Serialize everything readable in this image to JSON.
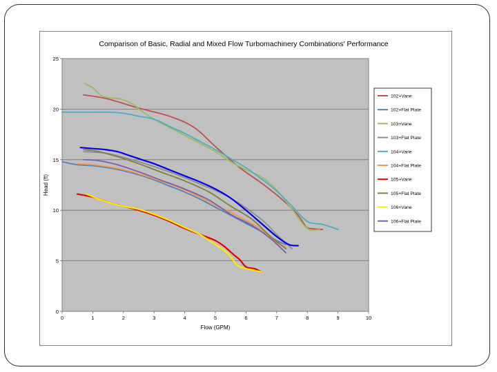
{
  "chart_data": {
    "type": "line",
    "title": "Comparison of Basic, Radial and Mixed Flow Turbomachinery Combinations' Performance",
    "xlabel": "Flow (GPM)",
    "ylabel": "Head (ft)",
    "xlim": [
      0,
      10
    ],
    "ylim": [
      0,
      25
    ],
    "x_ticks": [
      "0",
      "1",
      "2",
      "3",
      "4",
      "5",
      "6",
      "7",
      "8",
      "9",
      "10"
    ],
    "y_ticks": [
      "0",
      "5",
      "10",
      "15",
      "20",
      "25"
    ],
    "grid": "horizontal",
    "legend_position": "right",
    "series": [
      {
        "name": "102+Vane",
        "color": "#c0504d",
        "x": [
          0.7,
          1.5,
          2.5,
          3.5,
          4.3,
          5,
          5.8,
          6.5,
          7.2,
          7.7,
          7.95,
          8.1,
          8.5
        ],
        "y": [
          21.4,
          21,
          20.1,
          19.3,
          18.2,
          16.3,
          14.2,
          12.7,
          11,
          9.5,
          8.4,
          8.2,
          8.1
        ]
      },
      {
        "name": "102+Flat Plate",
        "color": "#4f81bd",
        "x": [
          0,
          0.5,
          1,
          1.5,
          2,
          2.5,
          3,
          3.5,
          4,
          4.5,
          5,
          5.5,
          6,
          6.5,
          7,
          7.3
        ],
        "y": [
          14.8,
          14.5,
          14.4,
          14.2,
          13.9,
          13.5,
          13,
          12.4,
          11.8,
          11.1,
          10.3,
          9.5,
          8.7,
          7.9,
          7,
          6.6
        ]
      },
      {
        "name": "103+Vane",
        "color": "#9bbb59",
        "x": [
          0.75,
          1,
          1.3,
          1.6,
          1.9,
          2.3,
          2.6,
          3,
          3.5,
          4,
          4.5,
          5,
          5.5,
          6,
          6.5,
          7,
          7.5,
          8,
          8.4
        ],
        "y": [
          22.5,
          22.1,
          21.3,
          21.1,
          21,
          20.5,
          19.8,
          19,
          18.2,
          17.4,
          16.6,
          15.8,
          14.8,
          14,
          13.3,
          12,
          10.1,
          8.2,
          8.1
        ]
      },
      {
        "name": "103+Flat Plate",
        "color": "#8c8c8c",
        "x": [
          0.7,
          1.5,
          2.5,
          3.5,
          4.5,
          5.5,
          6.5,
          7,
          7.5
        ],
        "y": [
          15.8,
          15.6,
          14.8,
          13.8,
          12.6,
          11.2,
          9.1,
          7.6,
          6.2
        ]
      },
      {
        "name": "104+Vane",
        "color": "#4bacc6",
        "x": [
          0,
          0.5,
          1,
          1.5,
          2,
          2.5,
          3,
          3.5,
          4,
          4.5,
          5,
          5.5,
          6,
          6.5,
          7,
          7.5,
          8,
          8.5,
          9
        ],
        "y": [
          19.7,
          19.7,
          19.7,
          19.7,
          19.6,
          19.3,
          19,
          18.3,
          17.6,
          16.8,
          16,
          15.1,
          14.2,
          13.1,
          11.9,
          10.4,
          8.9,
          8.6,
          8.1
        ]
      },
      {
        "name": "104+Flat Plate",
        "color": "#f79646",
        "x": [
          0.5,
          1,
          1.5,
          2,
          2.5,
          3,
          3.5,
          4,
          4.5,
          5,
          5.5,
          6,
          6.5,
          7,
          7.3
        ],
        "y": [
          14.6,
          14.5,
          14.3,
          14,
          13.6,
          13.1,
          12.6,
          12,
          11.3,
          10.5,
          9.8,
          9,
          8.1,
          6.8,
          6.4
        ]
      },
      {
        "name": "105+Vane",
        "color": "#e00000",
        "x": [
          0.5,
          1,
          1.5,
          2,
          2.5,
          3,
          3.5,
          4,
          4.5,
          5,
          5.3,
          5.6,
          5.8,
          6,
          6.3,
          6.5
        ],
        "y": [
          11.6,
          11.3,
          10.8,
          10.4,
          10,
          9.5,
          8.9,
          8.2,
          7.6,
          7,
          6.4,
          5.6,
          5.1,
          4.4,
          4.2,
          3.9
        ]
      },
      {
        "name": "105+Flat Plate",
        "color": "#7f7f3f",
        "x": [
          0.7,
          1.2,
          1.8,
          2.5,
          3.2,
          4,
          4.8,
          5.5,
          6.2,
          6.8,
          7.3
        ],
        "y": [
          16,
          15.8,
          15.3,
          14.6,
          13.8,
          12.9,
          11.8,
          10.4,
          9.1,
          7.4,
          6.2
        ]
      },
      {
        "name": "106+Vane",
        "color": "#ffea00",
        "x": [
          0.8,
          1.2,
          1.6,
          2,
          2.5,
          3,
          3.5,
          4,
          4.5,
          5,
          5.3,
          5.5,
          5.7,
          5.9,
          6.2,
          6.5
        ],
        "y": [
          11.6,
          11.1,
          10.7,
          10.4,
          10.1,
          9.6,
          9,
          8.3,
          7.6,
          6.6,
          6,
          5.4,
          4.6,
          4.3,
          4.1,
          3.9
        ]
      },
      {
        "name": "106+Flat Plate",
        "color": "#7a5fb0",
        "x": [
          0.7,
          1.2,
          1.8,
          2.5,
          3.2,
          4,
          4.8,
          5.5,
          6.2,
          6.8,
          7.3
        ],
        "y": [
          15,
          14.9,
          14.5,
          13.8,
          13,
          12.1,
          11,
          9.6,
          8.5,
          7.2,
          5.8
        ]
      },
      {
        "name": "",
        "color": "#0000e6",
        "x": [
          0.6,
          1,
          1.4,
          1.8,
          2.2,
          2.6,
          3,
          3.5,
          4,
          4.5,
          5,
          5.5,
          6,
          6.5,
          7,
          7.4,
          7.7
        ],
        "y": [
          16.2,
          16.1,
          16,
          15.8,
          15.4,
          15,
          14.6,
          14,
          13.4,
          12.8,
          12.1,
          11.2,
          10,
          8.7,
          7.4,
          6.6,
          6.5
        ]
      }
    ]
  }
}
